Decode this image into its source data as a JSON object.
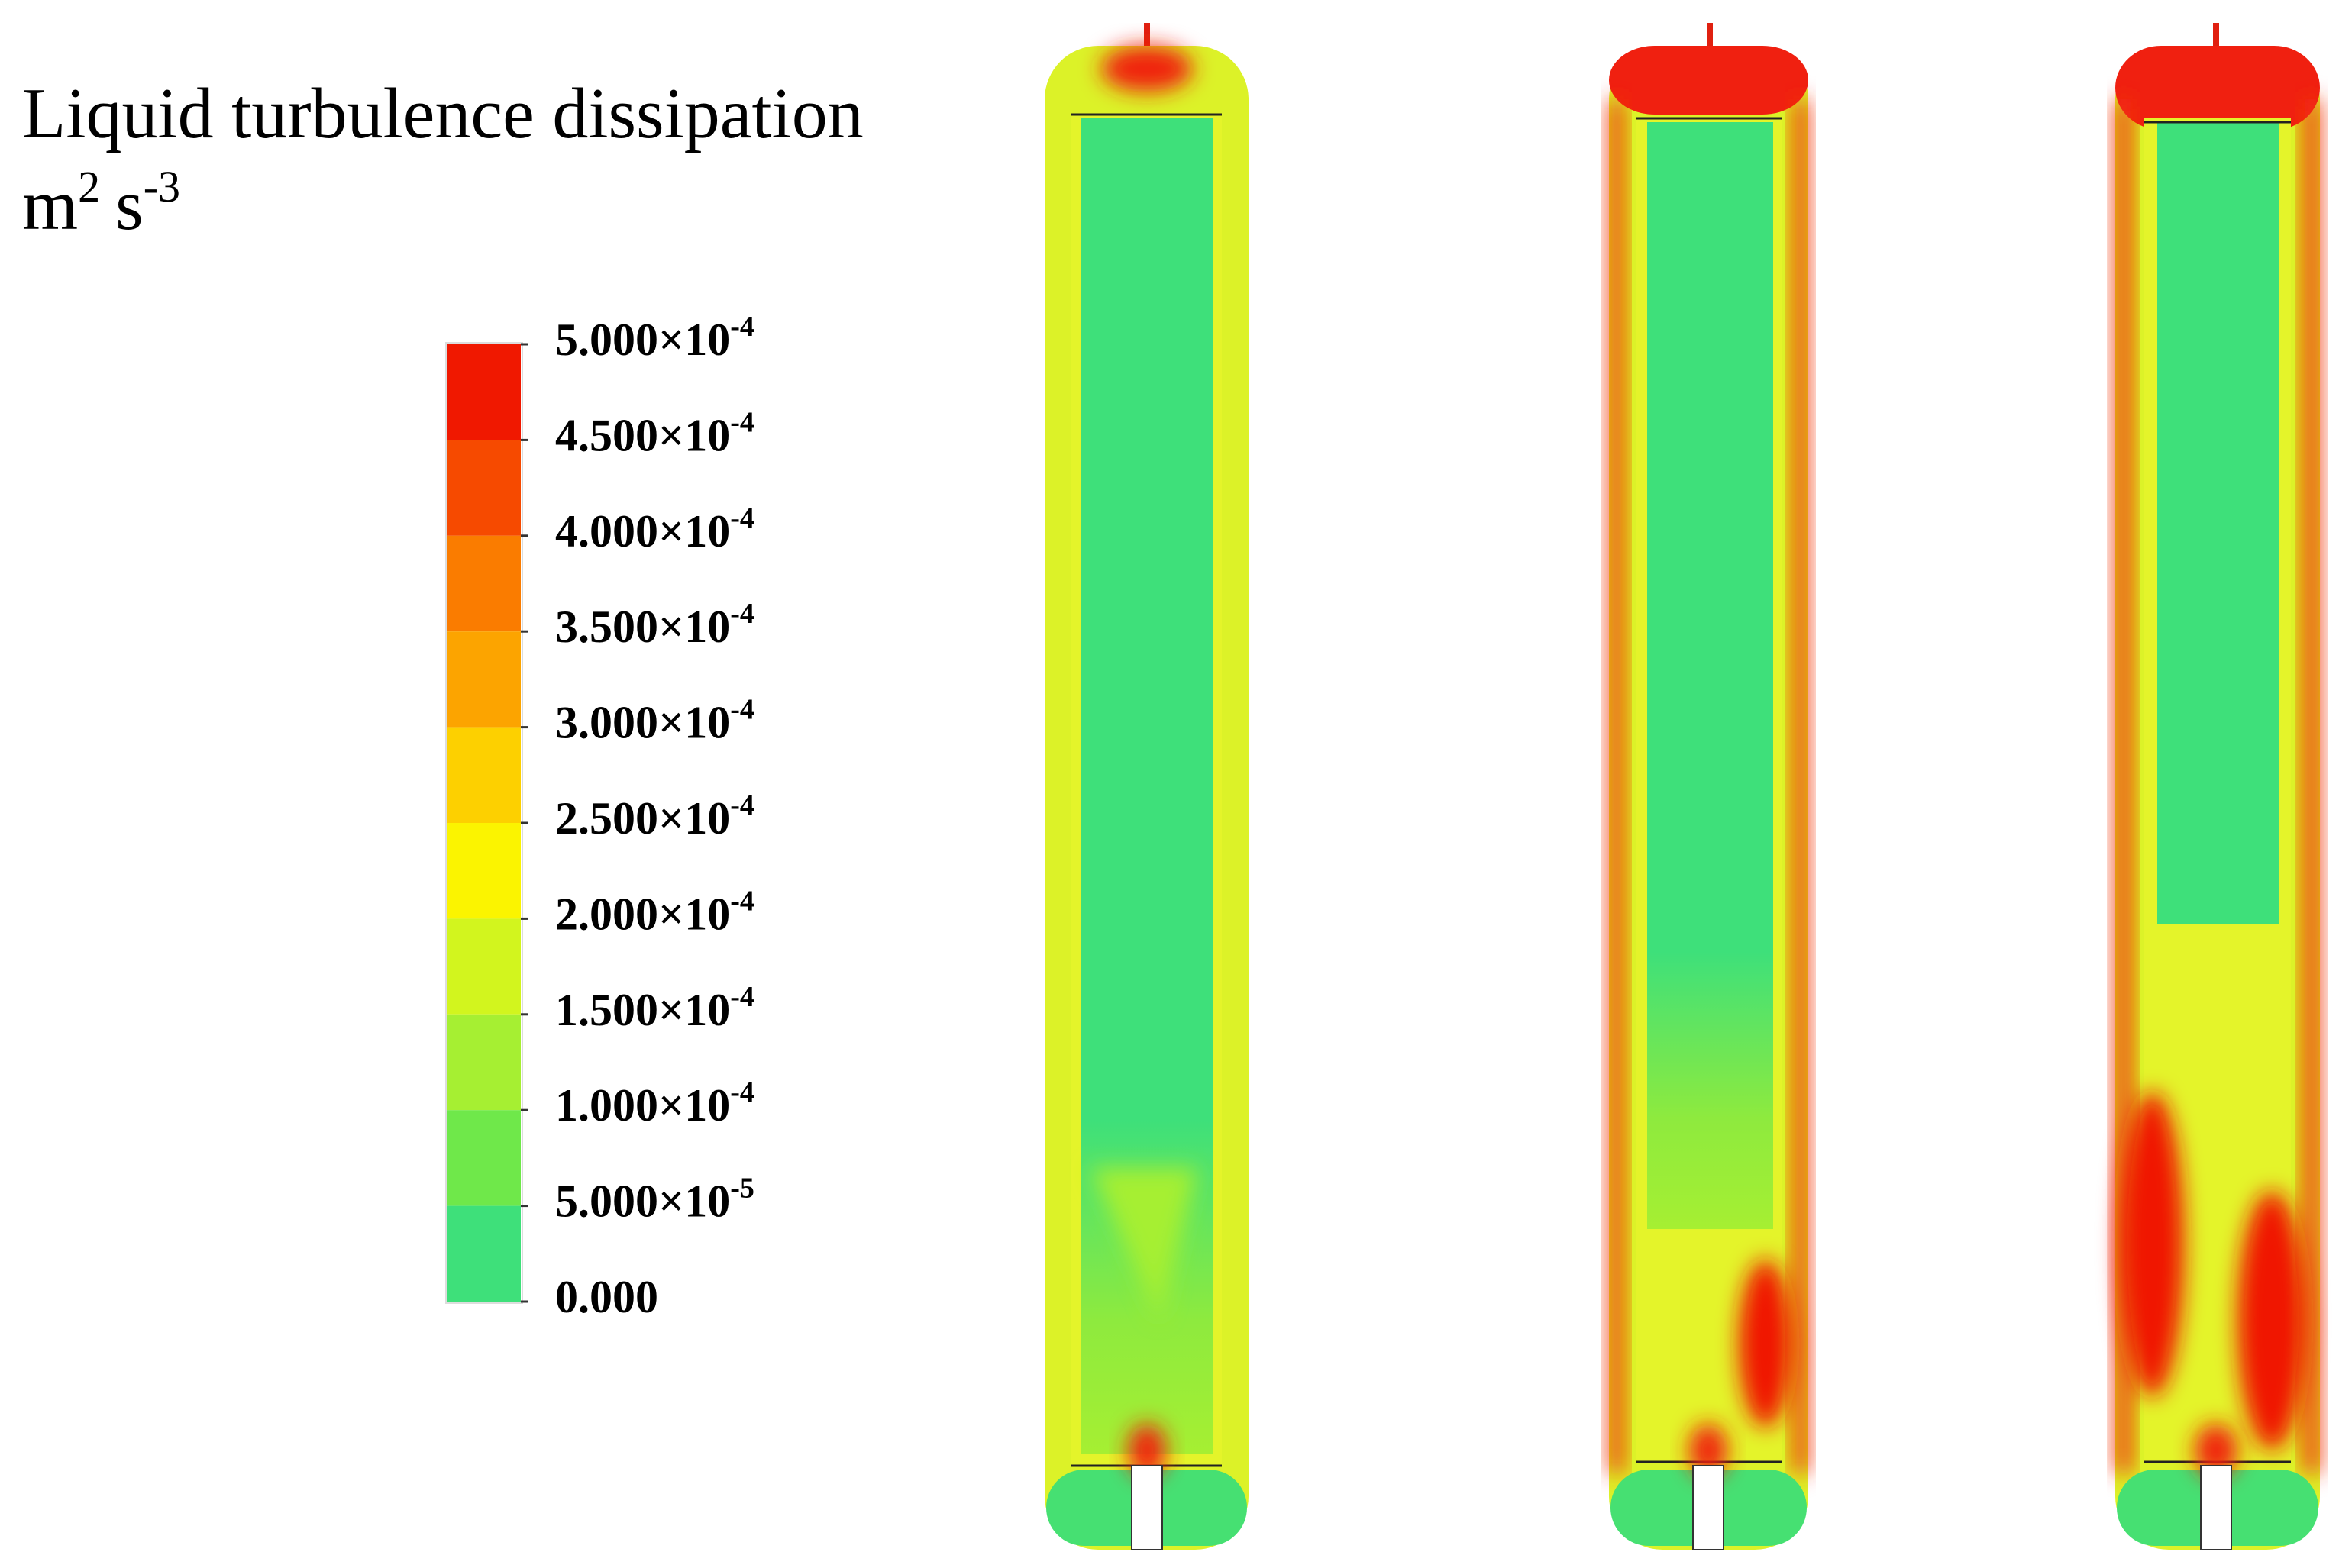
{
  "title": "Liquid turbulence dissipation",
  "unit": {
    "base1": "m",
    "exp1": "2",
    "base2": "s",
    "exp2": "-3"
  },
  "colorbar": {
    "ticks": [
      {
        "value": 0.0005,
        "mantissa": "5.000×10",
        "exponent": "-4"
      },
      {
        "value": 0.00045,
        "mantissa": "4.500×10",
        "exponent": "-4"
      },
      {
        "value": 0.0004,
        "mantissa": "4.000×10",
        "exponent": "-4"
      },
      {
        "value": 0.00035,
        "mantissa": "3.500×10",
        "exponent": "-4"
      },
      {
        "value": 0.0003,
        "mantissa": "3.000×10",
        "exponent": "-4"
      },
      {
        "value": 0.00025,
        "mantissa": "2.500×10",
        "exponent": "-4"
      },
      {
        "value": 0.0002,
        "mantissa": "2.000×10",
        "exponent": "-4"
      },
      {
        "value": 0.00015,
        "mantissa": "1.500×10",
        "exponent": "-4"
      },
      {
        "value": 0.0001,
        "mantissa": "1.000×10",
        "exponent": "-4"
      },
      {
        "value": 5e-05,
        "mantissa": "5.000×10",
        "exponent": "-5"
      },
      {
        "value": 0,
        "label": "0.000"
      }
    ],
    "colors": [
      "#f01800",
      "#f64a00",
      "#fa7c00",
      "#fca400",
      "#fdd000",
      "#fbf400",
      "#d2f51e",
      "#a6ef32",
      "#6fe84a",
      "#3ee07a"
    ]
  }
}
